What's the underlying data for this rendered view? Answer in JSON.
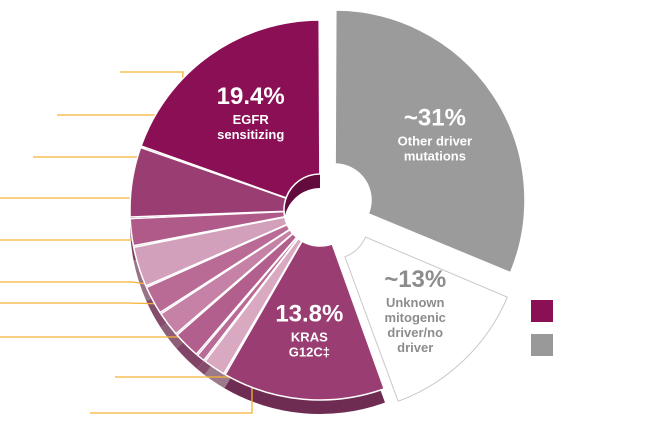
{
  "colors": {
    "primary": "#8b0f55",
    "muted": "#999999",
    "leader": "#f5b335"
  },
  "chart_data": {
    "type": "pie",
    "style": "donut, exploded slices, 3D depth",
    "slices": [
      {
        "value": 31,
        "big": "~31%",
        "label": [
          "Other driver",
          "mutations"
        ],
        "color": "#9b9b9b",
        "text_color": "#ffffff",
        "exploded": true
      },
      {
        "value": 13,
        "big": "~13%",
        "label": [
          "Unknown",
          "mitogenic",
          "driver/no",
          "driver"
        ],
        "color": "#ffffff",
        "text_color": "#8c8c8c",
        "outline": "#c8c8c8",
        "exploded": true
      },
      {
        "value": 13.8,
        "big": "13.8%",
        "label": [
          "KRAS",
          "G12C‡"
        ],
        "color": "#9a3d72",
        "text_color": "#ffffff"
      },
      {
        "value": 2.0,
        "big": "",
        "label": [],
        "color": "#d9a9c1",
        "text_color": "#ffffff"
      },
      {
        "value": 0.8,
        "big": "",
        "label": [],
        "color": "#b96a95",
        "text_color": "#ffffff"
      },
      {
        "value": 2.4,
        "big": "",
        "label": [],
        "color": "#b35f8d",
        "text_color": "#ffffff"
      },
      {
        "value": 2.2,
        "big": "",
        "label": [],
        "color": "#c582a6",
        "text_color": "#ffffff"
      },
      {
        "value": 2.5,
        "big": "",
        "label": [],
        "color": "#b96a95",
        "text_color": "#ffffff"
      },
      {
        "value": 3.5,
        "big": "",
        "label": [],
        "color": "#d3a0bc",
        "text_color": "#ffffff"
      },
      {
        "value": 2.4,
        "big": "",
        "label": [],
        "color": "#b05a8a",
        "text_color": "#ffffff"
      },
      {
        "value": 6.0,
        "big": "",
        "label": [],
        "color": "#9a3d72",
        "text_color": "#ffffff"
      },
      {
        "value": 19.4,
        "big": "19.4%",
        "label": [
          "EGFR",
          "sensitizing"
        ],
        "color": "#8b0f55",
        "text_color": "#ffffff"
      }
    ],
    "legend": [
      {
        "color": "#8b0f55"
      },
      {
        "color": "#999999"
      }
    ]
  }
}
